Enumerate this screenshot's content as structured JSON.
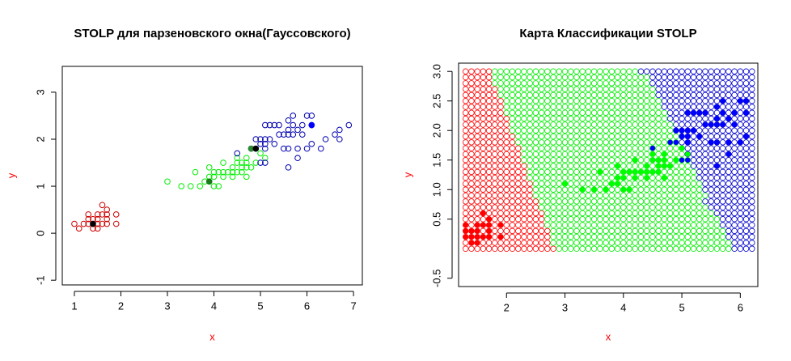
{
  "chart_data": [
    {
      "type": "scatter",
      "title": "STOLP для парзеновского окна(Гауссовского)",
      "xlabel": "x",
      "ylabel": "y",
      "label_color": "#ff0000",
      "xlim": [
        0.74,
        7.19
      ],
      "ylim": [
        -1.1,
        3.55
      ],
      "xticks": [
        1,
        2,
        3,
        4,
        5,
        6,
        7
      ],
      "yticks": [
        -1,
        0,
        1,
        2,
        3
      ],
      "series": [
        {
          "color": "#cd0000",
          "marker": "open",
          "x": [
            1.0,
            1.1,
            1.2,
            1.3,
            1.3,
            1.3,
            1.4,
            1.4,
            1.4,
            1.5,
            1.5,
            1.5,
            1.5,
            1.6,
            1.6,
            1.6,
            1.7,
            1.7,
            1.7,
            1.7,
            1.9,
            1.9
          ],
          "y": [
            0.2,
            0.1,
            0.2,
            0.2,
            0.3,
            0.4,
            0.1,
            0.2,
            0.3,
            0.1,
            0.2,
            0.3,
            0.4,
            0.2,
            0.4,
            0.6,
            0.2,
            0.3,
            0.4,
            0.5,
            0.2,
            0.4
          ]
        },
        {
          "color": "#00ee00",
          "marker": "open",
          "x": [
            3.0,
            3.3,
            3.5,
            3.6,
            3.7,
            3.8,
            3.9,
            3.9,
            3.9,
            4.0,
            4.0,
            4.0,
            4.1,
            4.1,
            4.2,
            4.2,
            4.2,
            4.3,
            4.4,
            4.4,
            4.4,
            4.5,
            4.5,
            4.5,
            4.6,
            4.6,
            4.6,
            4.7,
            4.7,
            4.7,
            4.7,
            4.8,
            4.8,
            4.9,
            5.0,
            5.1
          ],
          "y": [
            1.1,
            1.0,
            1.0,
            1.3,
            1.0,
            1.1,
            1.1,
            1.2,
            1.4,
            1.0,
            1.2,
            1.3,
            1.0,
            1.3,
            1.2,
            1.3,
            1.5,
            1.3,
            1.2,
            1.3,
            1.4,
            1.3,
            1.5,
            1.6,
            1.3,
            1.4,
            1.5,
            1.2,
            1.4,
            1.5,
            1.6,
            1.4,
            1.8,
            1.5,
            1.7,
            1.6
          ]
        },
        {
          "color": "#0000b0",
          "marker": "open",
          "x": [
            4.5,
            4.8,
            4.9,
            4.9,
            5.0,
            5.0,
            5.0,
            5.1,
            5.1,
            5.1,
            5.1,
            5.1,
            5.2,
            5.2,
            5.3,
            5.3,
            5.4,
            5.4,
            5.5,
            5.5,
            5.6,
            5.6,
            5.6,
            5.6,
            5.6,
            5.7,
            5.7,
            5.7,
            5.8,
            5.8,
            5.8,
            5.9,
            5.9,
            6.0,
            6.0,
            6.1,
            6.1,
            6.1,
            6.3,
            6.4,
            6.6,
            6.7,
            6.7,
            6.9
          ],
          "y": [
            1.7,
            1.8,
            1.8,
            2.0,
            1.5,
            1.9,
            2.0,
            1.5,
            1.8,
            1.9,
            2.0,
            2.3,
            2.0,
            2.3,
            1.9,
            2.3,
            2.1,
            2.3,
            1.8,
            2.1,
            1.4,
            1.8,
            2.1,
            2.2,
            2.4,
            2.1,
            2.3,
            2.5,
            1.6,
            1.8,
            2.2,
            2.1,
            2.3,
            1.8,
            2.5,
            1.9,
            2.3,
            2.5,
            1.8,
            2.0,
            2.1,
            2.0,
            2.2,
            2.3
          ]
        }
      ],
      "prototypes": {
        "x": [
          1.4,
          3.9,
          4.8,
          4.9,
          6.1
        ],
        "y": [
          0.2,
          1.1,
          1.8,
          1.8,
          2.3
        ],
        "colors": [
          "#000000",
          "#1a7a1a",
          "#2e8b2e",
          "#000000",
          "#0000ff"
        ]
      }
    },
    {
      "type": "map",
      "title": "Карта Классификации STOLP",
      "xlabel": "x",
      "ylabel": "y",
      "label_color": "#ff0000",
      "xlim": [
        1.18,
        6.3
      ],
      "ylim": [
        -0.64,
        3.14
      ],
      "xticks": [
        2,
        3,
        4,
        5,
        6
      ],
      "yticks": [
        -0.5,
        0.5,
        {
          "value": 1,
          "label": "1.0"
        },
        1.5,
        {
          "value": 2,
          "label": "2.0"
        },
        2.5,
        {
          "value": 3,
          "label": "3.0"
        }
      ],
      "grid": {
        "colors": [
          "#ff0000",
          "#00ee00",
          "#0000cc"
        ],
        "x": [
          1.3,
          1.4,
          1.5,
          1.6,
          1.7,
          1.8,
          1.9,
          2.0,
          2.1,
          2.2,
          2.3,
          2.4,
          2.5,
          2.6,
          2.7,
          2.8,
          2.9,
          3.0,
          3.1,
          3.2,
          3.3,
          3.4,
          3.5,
          3.6,
          3.7,
          3.8,
          3.9,
          4.0,
          4.1,
          4.2,
          4.3,
          4.4,
          4.5,
          4.6,
          4.7,
          4.8,
          4.9,
          5.0,
          5.1,
          5.2,
          5.3,
          5.4,
          5.5,
          5.6,
          5.7,
          5.8,
          5.9,
          6.0,
          6.1,
          6.2
        ],
        "y": [
          0.0,
          0.1,
          0.2,
          0.3,
          0.4,
          0.5,
          0.6,
          0.7,
          0.8,
          0.9,
          1.0,
          1.1,
          1.2,
          1.3,
          1.4,
          1.5,
          1.6,
          1.7,
          1.8,
          1.9,
          2.0,
          2.1,
          2.2,
          2.3,
          2.4,
          2.5,
          2.6,
          2.7,
          2.8,
          2.9,
          3.0
        ],
        "classes": [
          "00000000000000001111111111111111111111111111112222",
          "00000000000000011111111111111111111111111111112222",
          "00000000000000011111111111111111111111111111122222",
          "00000000000000011111111111111111111111111111122222",
          "00000000000000111111111111111111111111111111222222",
          "00000000000000111111111111111111111111111111222222",
          "00000000000000111111111111111111111111111112222222",
          "00000000000001111111111111111111111111111122222222",
          "00000000000001111111111111111111111111111222222222",
          "00000000000011111111111111111111111111111122222222",
          "00000000000011111111111111111111111111111222222222",
          "00000000000011111111111111111111111111111222222222",
          "00000000000111111111111111111111111111112222222222",
          "00000000000111111111111111111111111111112222222222",
          "00000000000111111111111111111111111111122222222222",
          "00000000001111111111111111111111111111122222222222",
          "00000000001111111111111111111111111111222222222222",
          "00000000001111111111111111111111111111222222222222",
          "00000000011111111111111111111111111112222222222222",
          "00000000011111111111111111111111111112222222222222",
          "00000000111111111111111111111111111122222222222222",
          "00000000111111111111111111111111111122222222222222",
          "00000000111111111111111111111111111222222222222222",
          "00000001111111111111111111111111111222222222222222",
          "00000001111111111111111111111111112222222222222222",
          "00000001111111111111111111111111112222222222222222",
          "00000011111111111111111111111111122222222222222222",
          "00000011111111111111111111111111122222222222222222",
          "00000111111111111111111111111111222222222222222222",
          "00000111111111111111111111111111222222222222222222",
          "00000111111111111111111111111122222222222222222222"
        ]
      },
      "series": [
        {
          "color": "#ff0000",
          "marker": "filled",
          "x": [
            1.3,
            1.3,
            1.3,
            1.4,
            1.4,
            1.4,
            1.5,
            1.5,
            1.5,
            1.5,
            1.6,
            1.6,
            1.6,
            1.7,
            1.7,
            1.7,
            1.7,
            1.9,
            1.9
          ],
          "y": [
            0.2,
            0.3,
            0.4,
            0.1,
            0.2,
            0.3,
            0.1,
            0.2,
            0.3,
            0.4,
            0.2,
            0.4,
            0.6,
            0.2,
            0.3,
            0.4,
            0.5,
            0.2,
            0.4
          ]
        },
        {
          "color": "#00ff00",
          "marker": "filled",
          "x": [
            3.0,
            3.3,
            3.5,
            3.6,
            3.7,
            3.8,
            3.9,
            3.9,
            3.9,
            4.0,
            4.0,
            4.0,
            4.1,
            4.1,
            4.2,
            4.2,
            4.2,
            4.3,
            4.4,
            4.4,
            4.4,
            4.5,
            4.5,
            4.5,
            4.6,
            4.6,
            4.6,
            4.7,
            4.7,
            4.7,
            4.7,
            4.8,
            4.8,
            4.9,
            5.0,
            5.1
          ],
          "y": [
            1.1,
            1.0,
            1.0,
            1.3,
            1.0,
            1.1,
            1.1,
            1.2,
            1.4,
            1.0,
            1.2,
            1.3,
            1.0,
            1.3,
            1.2,
            1.3,
            1.5,
            1.3,
            1.2,
            1.3,
            1.4,
            1.3,
            1.5,
            1.6,
            1.3,
            1.4,
            1.5,
            1.2,
            1.4,
            1.5,
            1.6,
            1.4,
            1.8,
            1.5,
            1.7,
            1.6
          ]
        },
        {
          "color": "#0000ff",
          "marker": "filled",
          "x": [
            4.5,
            4.8,
            4.9,
            4.9,
            5.0,
            5.0,
            5.0,
            5.1,
            5.1,
            5.1,
            5.1,
            5.1,
            5.2,
            5.2,
            5.3,
            5.3,
            5.4,
            5.4,
            5.5,
            5.5,
            5.6,
            5.6,
            5.6,
            5.6,
            5.6,
            5.7,
            5.7,
            5.7,
            5.8,
            5.8,
            5.8,
            5.9,
            5.9,
            6.0,
            6.0,
            6.1,
            6.1,
            6.1
          ],
          "y": [
            1.7,
            1.8,
            1.8,
            2.0,
            1.5,
            1.9,
            2.0,
            1.5,
            1.8,
            1.9,
            2.0,
            2.3,
            2.0,
            2.3,
            1.9,
            2.3,
            2.1,
            2.3,
            1.8,
            2.1,
            1.4,
            1.8,
            2.1,
            2.2,
            2.4,
            2.1,
            2.3,
            2.5,
            1.6,
            1.8,
            2.2,
            2.1,
            2.3,
            1.8,
            2.5,
            1.9,
            2.3,
            2.5
          ]
        }
      ]
    }
  ]
}
